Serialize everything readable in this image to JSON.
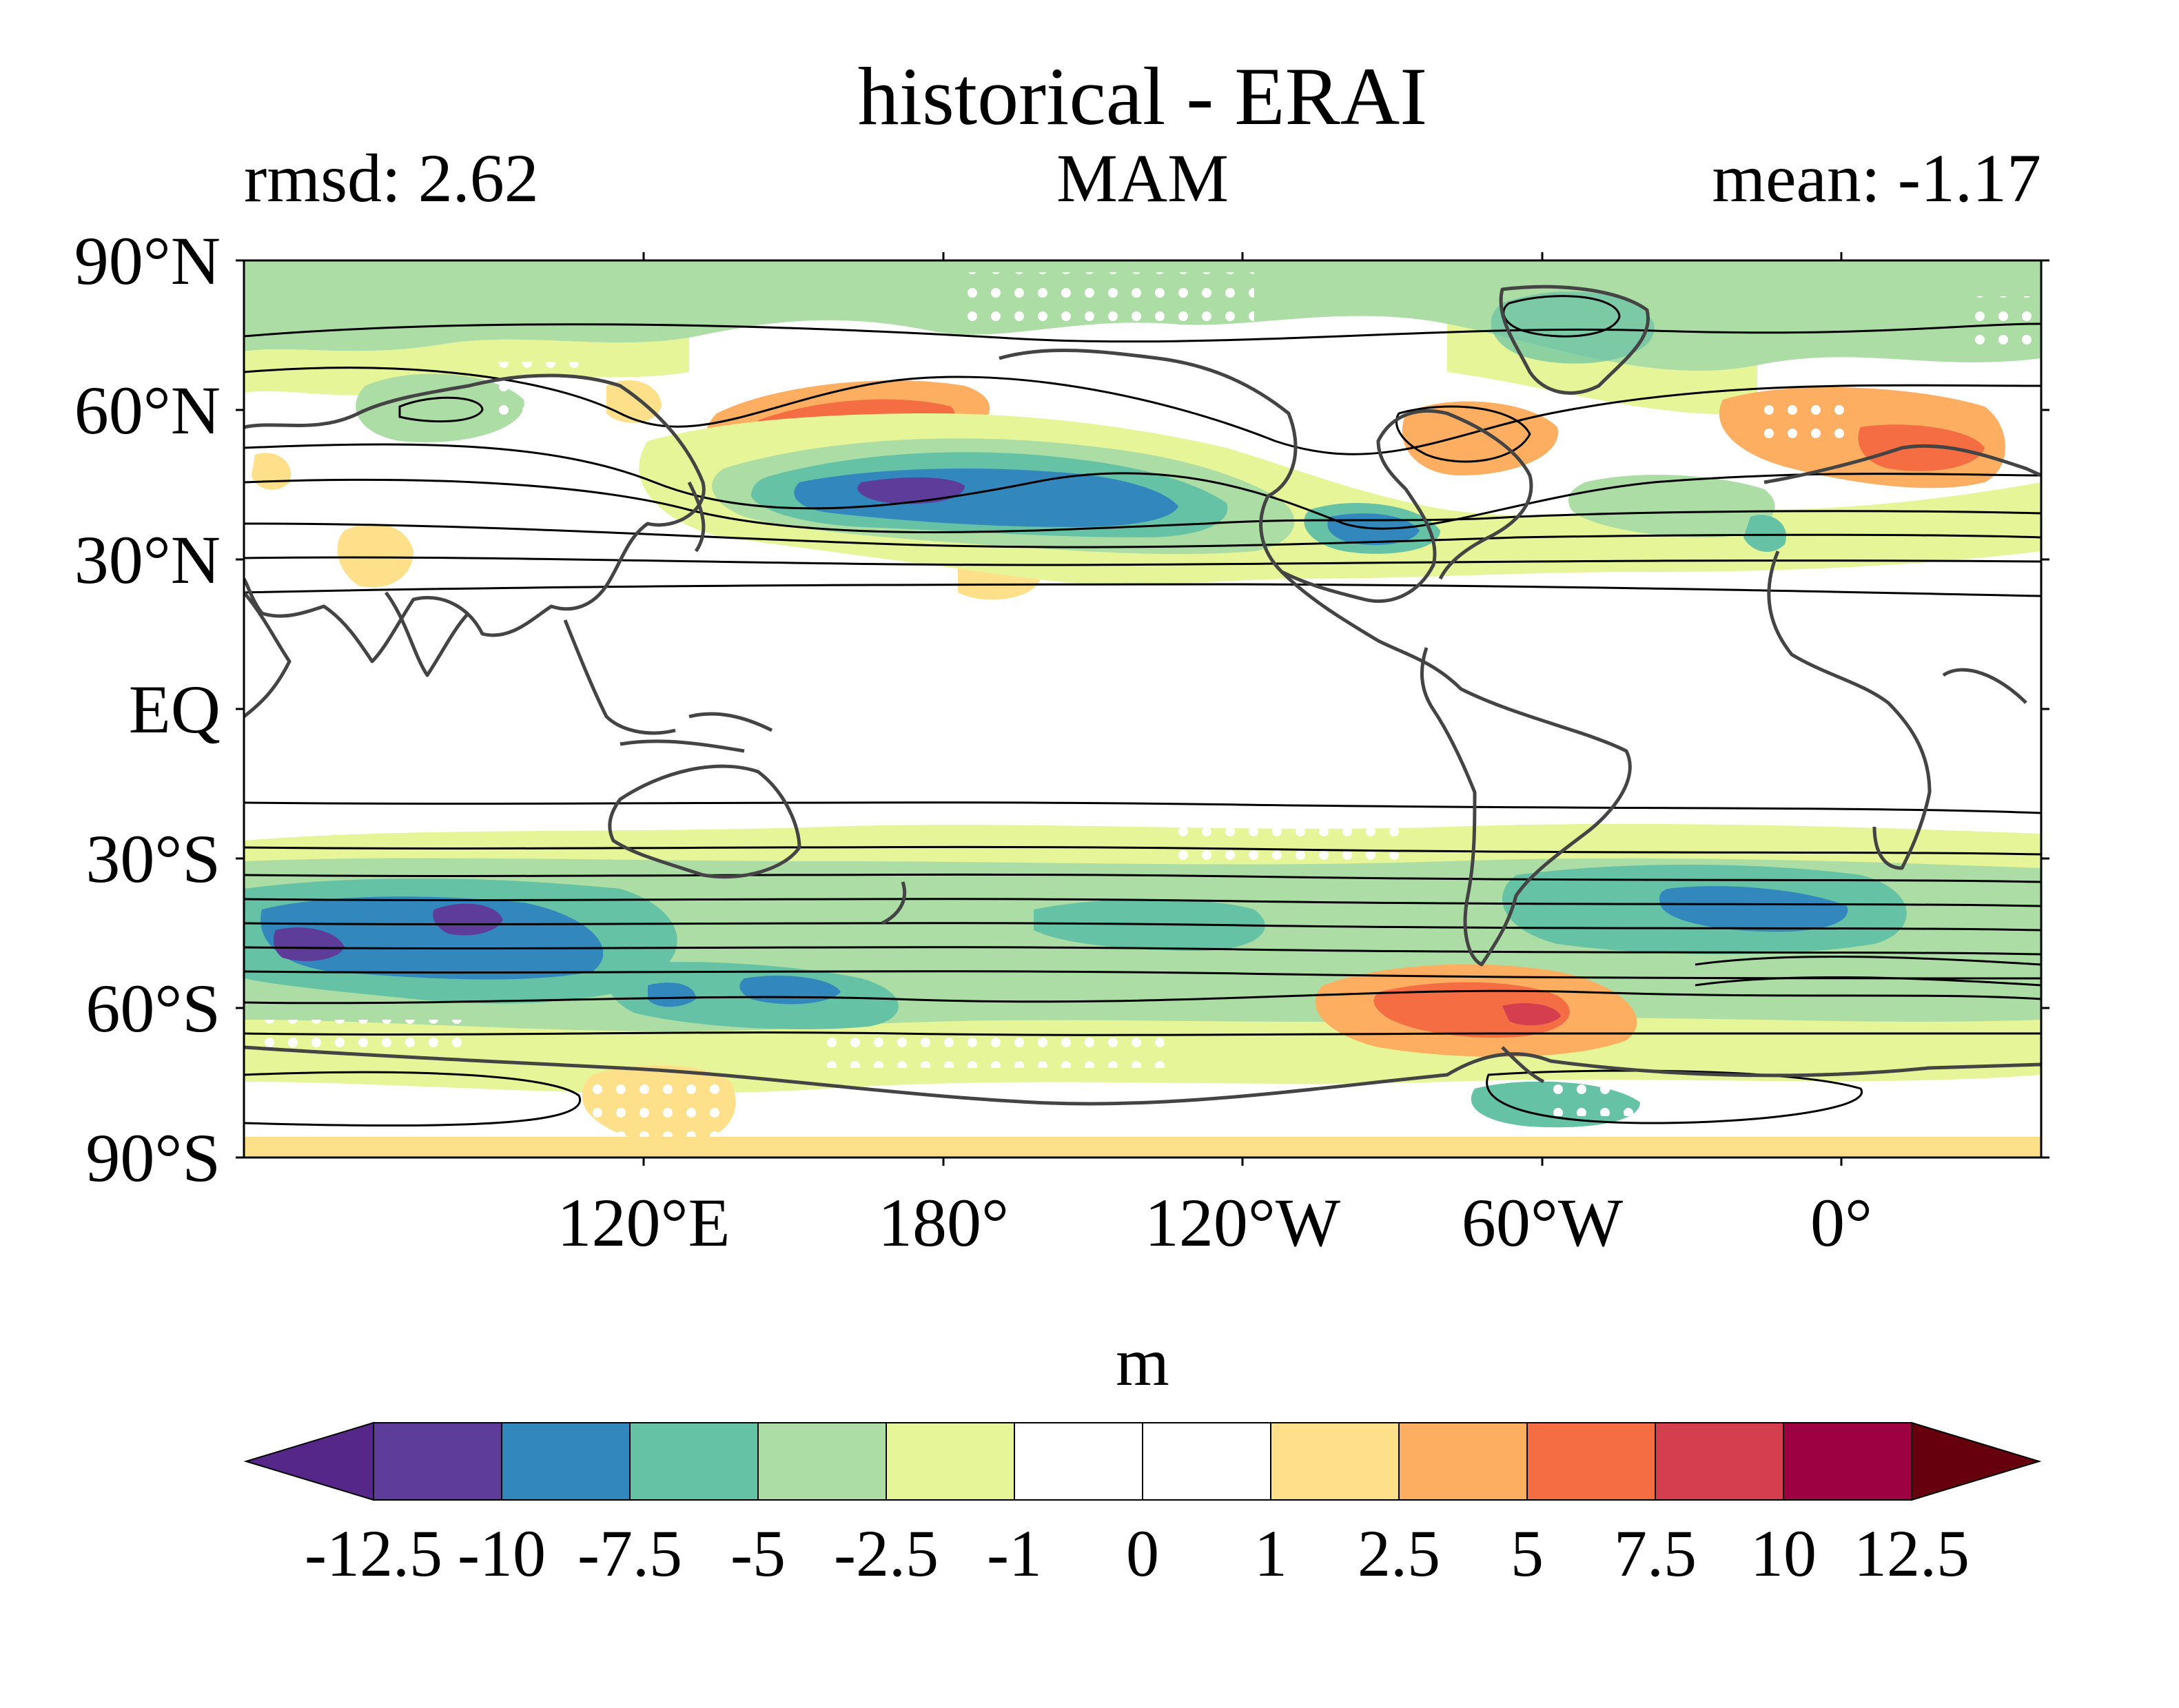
{
  "header": {
    "title": "historical - ERAI",
    "rmsd": "rmsd: 2.62",
    "season": "MAM",
    "mean": "mean: -1.17"
  },
  "axes": {
    "lat_labels": [
      "90°N",
      "60°N",
      "30°N",
      "EQ",
      "30°S",
      "60°S",
      "90°S"
    ],
    "lon_labels": [
      "120°E",
      "180°",
      "120°W",
      "60°W",
      "0°"
    ]
  },
  "colorbar": {
    "unit": "m",
    "levels": [
      "-12.5",
      "-10",
      "-7.5",
      "-5",
      "-2.5",
      "-1",
      "0",
      "1",
      "2.5",
      "5",
      "7.5",
      "10",
      "12.5"
    ],
    "colors": [
      "#5e3c99",
      "#3288bd",
      "#66c2a5",
      "#abdda4",
      "#e6f598",
      "#ffffff",
      "#ffffff",
      "#fee08b",
      "#fdae61",
      "#f46d43",
      "#d53e4f",
      "#9e0142"
    ],
    "extend_low_color": "#542788",
    "extend_high_color": "#67000d"
  }
}
